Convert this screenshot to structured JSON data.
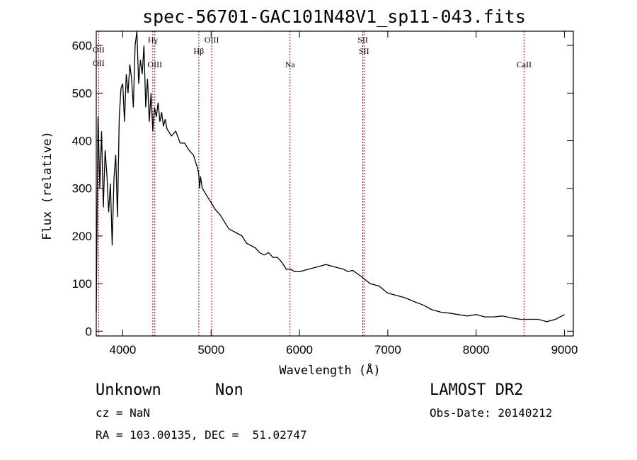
{
  "chart_data": {
    "type": "line",
    "title": "spec-56701-GAC101N48V1_sp11-043.fits",
    "xlabel": "Wavelength (Å)",
    "ylabel": "Flux (relative)",
    "xlim": [
      3700,
      9100
    ],
    "ylim": [
      -10,
      630
    ],
    "x_ticks": [
      4000,
      5000,
      6000,
      7000,
      8000,
      9000
    ],
    "x_tick_labels": [
      "4000",
      "5000",
      "6000",
      "7000",
      "8000",
      "9000"
    ],
    "y_ticks": [
      0,
      100,
      200,
      300,
      400,
      500,
      600
    ],
    "y_tick_labels": [
      "0",
      "100",
      "200",
      "300",
      "400",
      "500",
      "600"
    ],
    "grid": false,
    "series": [
      {
        "x": [
          3700,
          3720,
          3740,
          3760,
          3780,
          3800,
          3820,
          3840,
          3860,
          3880,
          3900,
          3920,
          3940,
          3960,
          3980,
          4000,
          4020,
          4040,
          4060,
          4080,
          4100,
          4120,
          4140,
          4160,
          4180,
          4200,
          4220,
          4240,
          4260,
          4280,
          4300,
          4320,
          4340,
          4360,
          4380,
          4400,
          4420,
          4440,
          4460,
          4480,
          4500,
          4550,
          4600,
          4650,
          4700,
          4750,
          4800,
          4850,
          4860,
          4870,
          4880,
          4900,
          4950,
          5000,
          5050,
          5100,
          5150,
          5200,
          5250,
          5300,
          5350,
          5400,
          5450,
          5500,
          5550,
          5600,
          5650,
          5700,
          5750,
          5800,
          5850,
          5900,
          5950,
          6000,
          6100,
          6200,
          6300,
          6400,
          6500,
          6550,
          6600,
          6700,
          6800,
          6900,
          7000,
          7100,
          7200,
          7300,
          7400,
          7500,
          7600,
          7700,
          7800,
          7900,
          8000,
          8100,
          8200,
          8300,
          8400,
          8500,
          8600,
          8700,
          8800,
          8900,
          9000
        ],
        "y": [
          40,
          450,
          300,
          420,
          260,
          380,
          330,
          250,
          310,
          180,
          320,
          370,
          240,
          450,
          510,
          520,
          440,
          540,
          500,
          560,
          530,
          470,
          600,
          630,
          520,
          570,
          540,
          600,
          470,
          530,
          440,
          500,
          420,
          470,
          450,
          480,
          440,
          460,
          430,
          445,
          425,
          410,
          420,
          395,
          395,
          380,
          370,
          340,
          330,
          300,
          325,
          300,
          285,
          270,
          255,
          245,
          230,
          215,
          210,
          205,
          200,
          185,
          180,
          175,
          165,
          160,
          165,
          155,
          155,
          145,
          130,
          130,
          125,
          125,
          130,
          135,
          140,
          135,
          130,
          125,
          128,
          115,
          100,
          95,
          80,
          75,
          70,
          62,
          55,
          45,
          40,
          38,
          35,
          32,
          35,
          30,
          30,
          32,
          28,
          25,
          25,
          25,
          20,
          25,
          35
        ]
      }
    ],
    "lines": [
      {
        "x": 3727,
        "labels": [
          "OII",
          "OII"
        ]
      },
      {
        "x": 4340,
        "labels": [
          "Hγ"
        ]
      },
      {
        "x": 4363,
        "labels": [
          "OIII"
        ]
      },
      {
        "x": 4861,
        "labels": [
          "Hβ"
        ]
      },
      {
        "x": 5007,
        "labels": [
          "OIII"
        ]
      },
      {
        "x": 5893,
        "labels": [
          "Na"
        ]
      },
      {
        "x": 6717,
        "labels": [
          "SII"
        ]
      },
      {
        "x": 6731,
        "labels": [
          "SII"
        ]
      },
      {
        "x": 8542,
        "labels": [
          "CaII"
        ]
      }
    ],
    "line_color": "#000000",
    "marker_color": "#aa0000"
  },
  "info": {
    "class": "Unknown",
    "subclass": "Non",
    "survey": "LAMOST DR2",
    "cz": "cz = NaN",
    "obs_date": "Obs-Date: 20140212",
    "coords": "RA = 103.00135, DEC =  51.02747"
  }
}
